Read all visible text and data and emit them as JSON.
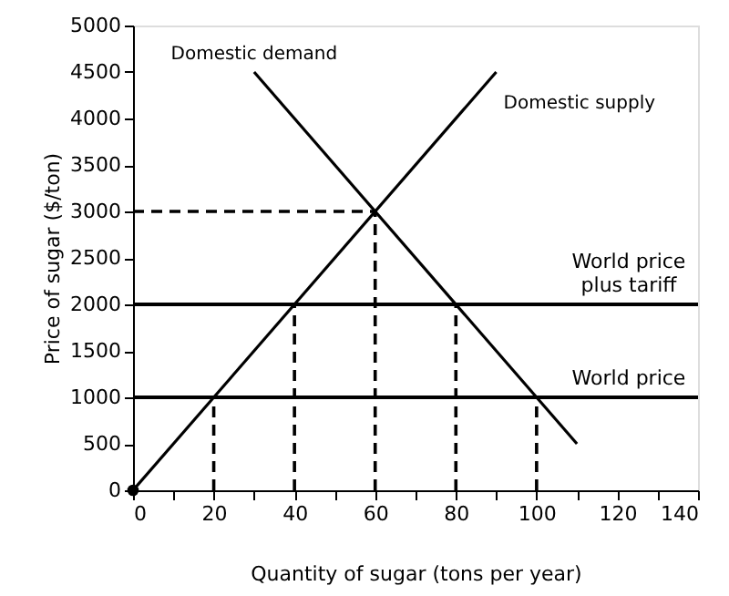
{
  "chart_data": {
    "type": "line",
    "xlabel": "Quantity of sugar (tons per year)",
    "ylabel": "Price of sugar ($/ton)",
    "xlim": [
      0,
      140
    ],
    "ylim": [
      0,
      5000
    ],
    "xticks": [
      0,
      {
        "value": 10,
        "label": null
      },
      20,
      {
        "value": 30,
        "label": null
      },
      40,
      {
        "value": 50,
        "label": null
      },
      60,
      {
        "value": 70,
        "label": null
      },
      80,
      {
        "value": 90,
        "label": null
      },
      100,
      {
        "value": 110,
        "label": null
      },
      120,
      {
        "value": 130,
        "label": null
      },
      140
    ],
    "yticks": [
      0,
      500,
      1000,
      1500,
      2000,
      2500,
      3000,
      3500,
      4000,
      4500,
      5000
    ],
    "grid": false,
    "series": [
      {
        "name": "Domestic demand",
        "color": "#000000",
        "x": [
          30,
          110
        ],
        "values": [
          4500,
          500
        ]
      },
      {
        "name": "Domestic supply",
        "color": "#000000",
        "x": [
          0,
          90
        ],
        "values": [
          0,
          4500
        ]
      },
      {
        "color": "#000000",
        "line_style": "dashed",
        "x": [
          0,
          60
        ],
        "values": [
          3000,
          3000
        ]
      },
      {
        "color": "#000000",
        "line_style": "dashed",
        "x": [
          20,
          20
        ],
        "values": [
          0,
          1000
        ]
      },
      {
        "color": "#000000",
        "line_style": "dashed",
        "x": [
          40,
          40
        ],
        "values": [
          0,
          2000
        ]
      },
      {
        "color": "#000000",
        "line_style": "dashed",
        "x": [
          60,
          60
        ],
        "values": [
          0,
          3000
        ]
      },
      {
        "color": "#000000",
        "line_style": "dashed",
        "x": [
          80,
          80
        ],
        "values": [
          0,
          2000
        ]
      },
      {
        "color": "#000000",
        "line_style": "dashed",
        "x": [
          100,
          100
        ],
        "values": [
          0,
          1000
        ]
      },
      {
        "type": "scatter",
        "marker": "circle",
        "color": "#000000",
        "x": [
          0
        ],
        "values": [
          0
        ]
      }
    ],
    "ref_lines": [
      {
        "axis": "y",
        "value": 2000,
        "label": "World price\nplus tariff",
        "color": "#000000"
      },
      {
        "axis": "y",
        "value": 1000,
        "label": "World price",
        "color": "#000000"
      }
    ]
  }
}
